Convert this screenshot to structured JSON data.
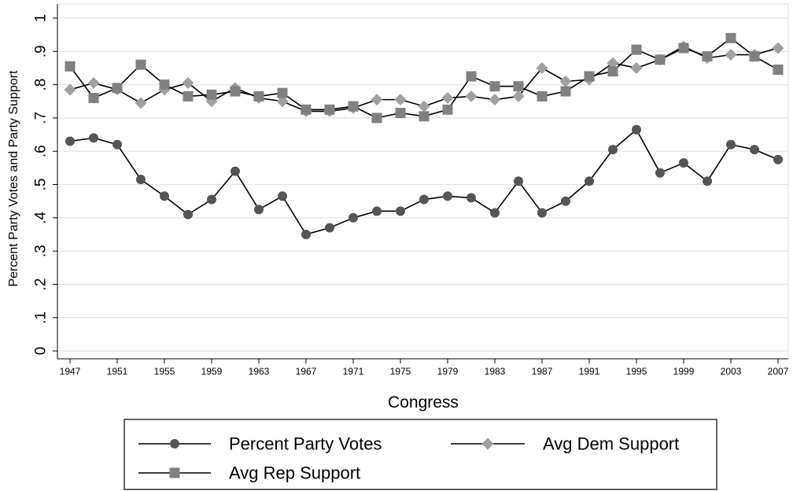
{
  "chart_data": {
    "type": "line",
    "title": "",
    "xlabel": "Congress",
    "ylabel": "Percent Party Votes and Party Support",
    "ylim": [
      0,
      1
    ],
    "y_ticks": [
      "0",
      ".1",
      ".2",
      ".3",
      ".4",
      ".5",
      ".6",
      ".7",
      ".8",
      ".9",
      "1"
    ],
    "x_ticks": [
      "1947",
      "1951",
      "1955",
      "1959",
      "1963",
      "1967",
      "1971",
      "1975",
      "1979",
      "1983",
      "1987",
      "1991",
      "1995",
      "1999",
      "2003",
      "2007"
    ],
    "grid": true,
    "legend_position": "bottom",
    "x": [
      1947,
      1949,
      1951,
      1953,
      1955,
      1957,
      1959,
      1961,
      1963,
      1965,
      1967,
      1969,
      1971,
      1973,
      1975,
      1977,
      1979,
      1981,
      1983,
      1985,
      1987,
      1989,
      1991,
      1993,
      1995,
      1997,
      1999,
      2001,
      2003,
      2005,
      2007
    ],
    "series": [
      {
        "name": "Percent Party Votes",
        "marker": "circle",
        "color": "#555555",
        "values": [
          0.63,
          0.64,
          0.62,
          0.515,
          0.465,
          0.41,
          0.455,
          0.54,
          0.425,
          0.465,
          0.35,
          0.37,
          0.4,
          0.42,
          0.42,
          0.455,
          0.465,
          0.46,
          0.415,
          0.51,
          0.415,
          0.45,
          0.51,
          0.605,
          0.665,
          0.535,
          0.565,
          0.51,
          0.62,
          0.605,
          0.575
        ]
      },
      {
        "name": "Avg Dem Support",
        "marker": "diamond",
        "color": "#a0a0a0",
        "values": [
          0.785,
          0.805,
          0.785,
          0.745,
          0.785,
          0.805,
          0.75,
          0.79,
          0.76,
          0.75,
          0.72,
          0.72,
          0.73,
          0.755,
          0.755,
          0.735,
          0.76,
          0.765,
          0.755,
          0.765,
          0.85,
          0.81,
          0.815,
          0.865,
          0.85,
          0.875,
          0.915,
          0.88,
          0.89,
          0.89,
          0.91
        ]
      },
      {
        "name": "Avg Rep Support",
        "marker": "square",
        "color": "#808080",
        "values": [
          0.855,
          0.76,
          0.79,
          0.86,
          0.8,
          0.765,
          0.77,
          0.78,
          0.765,
          0.775,
          0.725,
          0.725,
          0.735,
          0.7,
          0.715,
          0.705,
          0.725,
          0.825,
          0.795,
          0.795,
          0.765,
          0.78,
          0.825,
          0.84,
          0.905,
          0.875,
          0.91,
          0.885,
          0.94,
          0.885,
          0.845
        ]
      }
    ]
  }
}
